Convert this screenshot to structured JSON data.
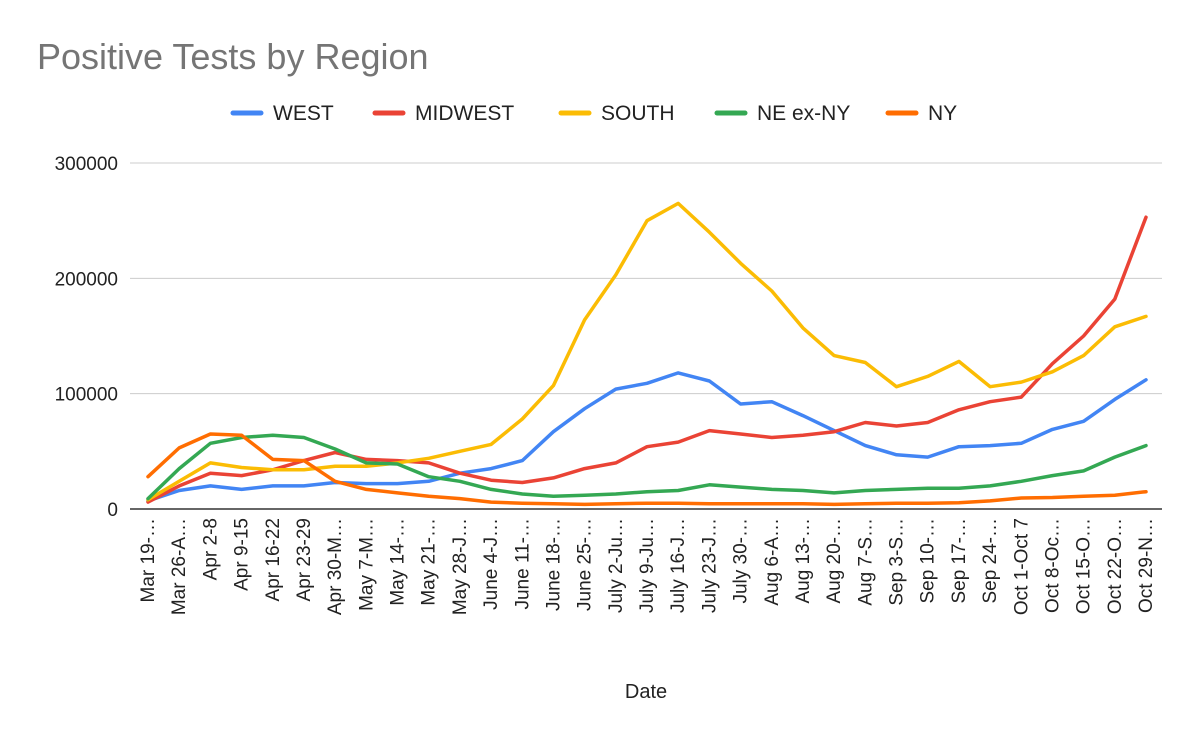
{
  "chart_data": {
    "type": "line",
    "title": "Positive Tests by Region",
    "xlabel": "Date",
    "ylabel": "",
    "ylim": [
      0,
      300000
    ],
    "yticks": [
      "0",
      "100000",
      "200000",
      "300000"
    ],
    "grid": true,
    "legend_position": "top",
    "categories": [
      "Mar 19-…",
      "Mar 26-A…",
      "Apr 2-8",
      "Apr 9-15",
      "Apr 16-22",
      "Apr 23-29",
      "Apr 30-M…",
      "May 7-M…",
      "May 14-…",
      "May 21-…",
      "May 28-J…",
      "June 4-J…",
      "June 11-…",
      "June 18-…",
      "June 25-…",
      "July 2-Ju…",
      "July 9-Ju…",
      "July 16-J…",
      "July 23-J…",
      "July 30-…",
      "Aug 6-A…",
      "Aug 13-…",
      "Aug 20-…",
      "Aug 7-S…",
      "Sep 3-S…",
      "Sep 10-…",
      "Sep 17-…",
      "Sep 24-…",
      "Oct 1-Oct 7",
      "Oct 8-Oc…",
      "Oct 15-O…",
      "Oct 22-O…",
      "Oct 29-N…"
    ],
    "series": [
      {
        "name": "WEST",
        "color": "#4285f4",
        "values": [
          7000,
          16000,
          20000,
          17000,
          20000,
          20000,
          23000,
          22000,
          22000,
          24000,
          31000,
          35000,
          42000,
          67000,
          87000,
          104000,
          109000,
          118000,
          111000,
          91000,
          93000,
          81000,
          68000,
          55000,
          47000,
          45000,
          54000,
          55000,
          57000,
          69000,
          76000,
          95000,
          112000
        ]
      },
      {
        "name": "MIDWEST",
        "color": "#ea4335",
        "values": [
          6000,
          20000,
          31000,
          29000,
          34000,
          42000,
          49000,
          43000,
          42000,
          40000,
          31000,
          25000,
          23000,
          27000,
          35000,
          40000,
          54000,
          58000,
          68000,
          65000,
          62000,
          64000,
          67000,
          75000,
          72000,
          75000,
          86000,
          93000,
          97000,
          126000,
          150000,
          182000,
          253000
        ]
      },
      {
        "name": "SOUTH",
        "color": "#fbbc04",
        "values": [
          8000,
          24000,
          40000,
          36000,
          34000,
          34000,
          37000,
          37000,
          40000,
          44000,
          50000,
          56000,
          78000,
          107000,
          164000,
          203000,
          250000,
          265000,
          240000,
          213000,
          189000,
          157000,
          133000,
          127000,
          106000,
          115000,
          128000,
          106000,
          110000,
          119000,
          133000,
          158000,
          167000
        ]
      },
      {
        "name": "NE ex-NY",
        "color": "#34a853",
        "values": [
          9000,
          35000,
          57000,
          62000,
          64000,
          62000,
          52000,
          40000,
          39000,
          28000,
          24000,
          17000,
          13000,
          11000,
          12000,
          13000,
          15000,
          16000,
          21000,
          19000,
          17000,
          16000,
          14000,
          16000,
          17000,
          18000,
          18000,
          20000,
          24000,
          29000,
          33000,
          45000,
          55000
        ]
      },
      {
        "name": "NY",
        "color": "#ff6d01",
        "values": [
          28000,
          53000,
          65000,
          64000,
          43000,
          42000,
          24000,
          17000,
          14000,
          11000,
          9000,
          6000,
          5000,
          4500,
          4000,
          4500,
          5000,
          5000,
          4500,
          4500,
          4500,
          4500,
          4000,
          4500,
          5000,
          5000,
          5500,
          7000,
          9500,
          10000,
          11000,
          12000,
          15000
        ]
      }
    ]
  }
}
